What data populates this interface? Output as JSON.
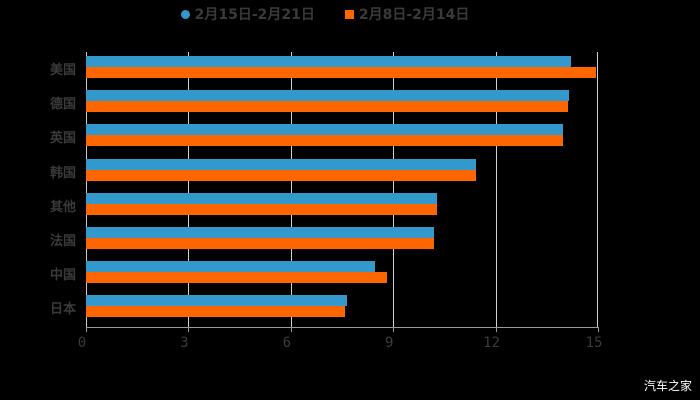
{
  "chart_data": {
    "type": "bar",
    "orientation": "horizontal",
    "title": "",
    "xlabel": "",
    "ylabel": "",
    "categories": [
      "美国",
      "德国",
      "英国",
      "韩国",
      "其他",
      "法国",
      "中国",
      "日本"
    ],
    "series": [
      {
        "name": "2月15日-2月21日",
        "color": "#3399CC",
        "values": [
          14.2,
          14.15,
          13.97,
          11.43,
          10.28,
          10.2,
          8.47,
          7.65
        ]
      },
      {
        "name": "2月8日-2月14日",
        "color": "#FF6600",
        "values": [
          14.94,
          14.12,
          13.97,
          11.43,
          10.28,
          10.2,
          8.82,
          7.59
        ]
      }
    ],
    "xlim": [
      0,
      15
    ],
    "xticks": [
      0,
      3,
      6,
      9,
      12,
      15
    ],
    "grid": true,
    "legend_position": "top"
  },
  "legend": {
    "series1": "2月15日-2月21日",
    "series2": "2月8日-2月14日"
  },
  "axis": {
    "ticks": [
      "0",
      "3",
      "6",
      "9",
      "12",
      "15"
    ]
  },
  "categories": [
    "美国",
    "德国",
    "英国",
    "韩国",
    "其他",
    "法国",
    "中国",
    "日本"
  ],
  "watermark": "汽车之家"
}
